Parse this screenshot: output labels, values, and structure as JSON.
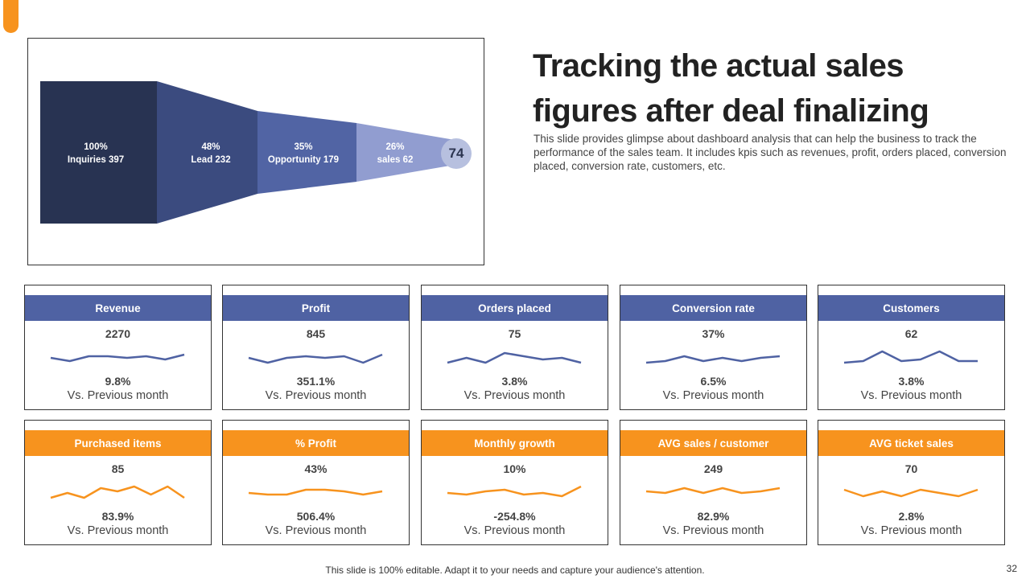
{
  "title": "Tracking the actual sales figures after deal finalizing",
  "description": "This slide provides glimpse about dashboard analysis that can help the business to track the performance of the sales team. It includes kpis such as revenues, profit, orders placed, conversion placed, conversion rate, customers, etc.",
  "colors": {
    "accent_orange": "#f7931e",
    "blue_header": "#4f62a3",
    "funnel": [
      "#283352",
      "#3b4b7f",
      "#5164a4",
      "#919dd0",
      "#b7c0df"
    ]
  },
  "funnel": {
    "stages": [
      {
        "percent": "100%",
        "label": "Inquiries 397"
      },
      {
        "percent": "48%",
        "label": "Lead 232"
      },
      {
        "percent": "35%",
        "label": "Opportunity  179"
      },
      {
        "percent": "26%",
        "label": "sales 62"
      }
    ],
    "end_value": "74"
  },
  "kpis_blue": [
    {
      "title": "Revenue",
      "value": "2270",
      "change": "9.8%",
      "compare": "Vs. Previous month",
      "trend": [
        5,
        3,
        6,
        6,
        5,
        6,
        4,
        7
      ]
    },
    {
      "title": "Profit",
      "value": "845",
      "change": "351.1%",
      "compare": "Vs. Previous month",
      "trend": [
        5,
        2,
        5,
        6,
        5,
        6,
        2,
        7
      ]
    },
    {
      "title": "Orders placed",
      "value": "75",
      "change": "3.8%",
      "compare": "Vs. Previous month",
      "trend": [
        2,
        5,
        2,
        8,
        6,
        4,
        5,
        2
      ]
    },
    {
      "title": "Conversion rate",
      "value": "37%",
      "change": "6.5%",
      "compare": "Vs. Previous month",
      "trend": [
        2,
        3,
        6,
        3,
        5,
        3,
        5,
        6
      ]
    },
    {
      "title": "Customers",
      "value": "62",
      "change": "3.8%",
      "compare": "Vs. Previous month",
      "trend": [
        2,
        3,
        9,
        3,
        4,
        9,
        3,
        3
      ]
    }
  ],
  "kpis_orange": [
    {
      "title": "Purchased items",
      "value": "85",
      "change": "83.9%",
      "compare": "Vs. Previous month",
      "trend": [
        2,
        5,
        2,
        8,
        6,
        9,
        4,
        9,
        2
      ]
    },
    {
      "title": "% Profit",
      "value": "43%",
      "change": "506.4%",
      "compare": "Vs. Previous month",
      "trend": [
        5,
        4,
        4,
        7,
        7,
        6,
        4,
        6
      ]
    },
    {
      "title": "Monthly growth",
      "value": "10%",
      "change": "-254.8%",
      "compare": "Vs. Previous month",
      "trend": [
        5,
        4,
        6,
        7,
        4,
        5,
        3,
        9
      ]
    },
    {
      "title": "AVG sales / customer",
      "value": "249",
      "change": "82.9%",
      "compare": "Vs. Previous month",
      "trend": [
        6,
        5,
        8,
        5,
        8,
        5,
        6,
        8
      ]
    },
    {
      "title": "AVG ticket sales",
      "value": "70",
      "change": "2.8%",
      "compare": "Vs. Previous month",
      "trend": [
        7,
        3,
        6,
        3,
        7,
        5,
        3,
        7
      ]
    }
  ],
  "footer": "This slide is 100% editable. Adapt it to your needs and capture your audience's attention.",
  "page_number": "32"
}
